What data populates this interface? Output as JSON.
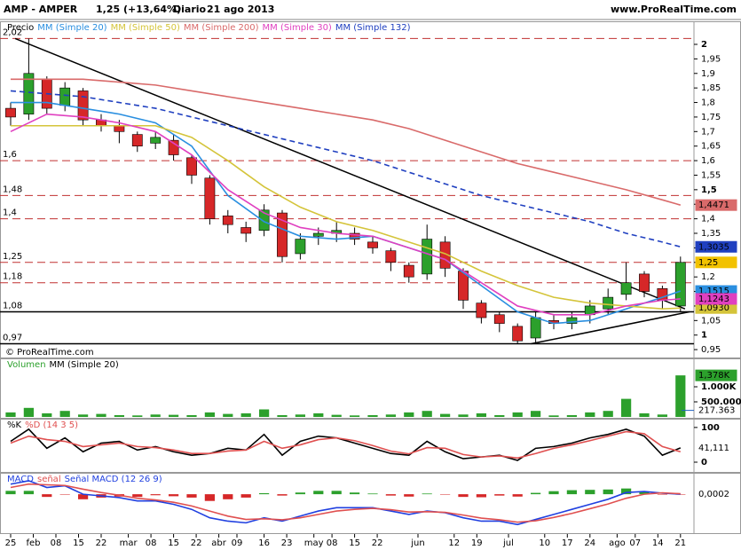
{
  "header": {
    "symbol": "AMP - AMPER",
    "quote": "1,25 (+13,64%)",
    "period": "Diario",
    "date": "21 ago 2013",
    "site": "www.ProRealTime.com"
  },
  "copyright": "© ProRealTime.com",
  "chart_data": [
    {
      "type": "candlestick",
      "title": "Precio",
      "xlim": [
        -2.35,
        150.98
      ],
      "ylim": [
        0.932,
        2.061
      ],
      "color_up": "#2ca02c",
      "color_down": "#d62728",
      "x": [
        0,
        4,
        8,
        12,
        16,
        20,
        24,
        28,
        32,
        36,
        40,
        44,
        48,
        52,
        56,
        60,
        64,
        68,
        72,
        76,
        80,
        84,
        88,
        92,
        96,
        100,
        104,
        108,
        112,
        116,
        120,
        124,
        128,
        132,
        136,
        140,
        144,
        148
      ],
      "open": [
        1.78,
        1.76,
        1.88,
        1.79,
        1.84,
        1.74,
        1.72,
        1.69,
        1.66,
        1.67,
        1.61,
        1.54,
        1.41,
        1.37,
        1.36,
        1.42,
        1.28,
        1.34,
        1.35,
        1.35,
        1.32,
        1.29,
        1.24,
        1.21,
        1.32,
        1.22,
        1.11,
        1.07,
        1.03,
        0.99,
        1.05,
        1.04,
        1.07,
        1.09,
        1.14,
        1.21,
        1.16,
        1.1
      ],
      "high": [
        1.8,
        2.02,
        1.89,
        1.87,
        1.85,
        1.76,
        1.74,
        1.7,
        1.7,
        1.69,
        1.62,
        1.55,
        1.43,
        1.39,
        1.45,
        1.43,
        1.35,
        1.37,
        1.39,
        1.37,
        1.34,
        1.3,
        1.25,
        1.38,
        1.34,
        1.23,
        1.12,
        1.08,
        1.04,
        1.08,
        1.07,
        1.08,
        1.12,
        1.16,
        1.25,
        1.22,
        1.17,
        1.27
      ],
      "low": [
        1.72,
        1.74,
        1.76,
        1.77,
        1.72,
        1.7,
        1.66,
        1.63,
        1.64,
        1.6,
        1.52,
        1.38,
        1.35,
        1.32,
        1.34,
        1.25,
        1.26,
        1.31,
        1.32,
        1.31,
        1.28,
        1.22,
        1.18,
        1.19,
        1.2,
        1.09,
        1.04,
        1.01,
        0.97,
        0.97,
        1.02,
        1.02,
        1.04,
        1.07,
        1.12,
        1.13,
        1.09,
        1.08
      ],
      "close": [
        1.75,
        1.9,
        1.78,
        1.85,
        1.74,
        1.72,
        1.7,
        1.65,
        1.68,
        1.62,
        1.55,
        1.4,
        1.38,
        1.35,
        1.43,
        1.27,
        1.33,
        1.35,
        1.36,
        1.33,
        1.3,
        1.25,
        1.2,
        1.33,
        1.23,
        1.12,
        1.06,
        1.04,
        0.98,
        1.06,
        1.04,
        1.06,
        1.1,
        1.13,
        1.18,
        1.15,
        1.12,
        1.25
      ],
      "close_label": "1,25",
      "close_tag_color": "#f2c200",
      "series": [
        {
          "name": "MM (Simple 20)",
          "color": "#2a8fe0",
          "x": [
            0,
            8,
            16,
            24,
            32,
            40,
            48,
            56,
            64,
            72,
            80,
            88,
            96,
            104,
            112,
            120,
            128,
            136,
            144,
            148
          ],
          "values": [
            1.8,
            1.8,
            1.78,
            1.76,
            1.73,
            1.65,
            1.48,
            1.39,
            1.34,
            1.33,
            1.34,
            1.3,
            1.26,
            1.17,
            1.08,
            1.04,
            1.05,
            1.09,
            1.13,
            1.1515
          ],
          "last_label": "1,1515"
        },
        {
          "name": "MM (Simple 50)",
          "color": "#d4c43a",
          "x": [
            0,
            8,
            16,
            24,
            32,
            40,
            48,
            56,
            64,
            72,
            80,
            88,
            96,
            104,
            112,
            120,
            128,
            136,
            144,
            148
          ],
          "values": [
            1.72,
            1.72,
            1.72,
            1.72,
            1.72,
            1.68,
            1.6,
            1.51,
            1.44,
            1.39,
            1.36,
            1.32,
            1.28,
            1.22,
            1.17,
            1.13,
            1.11,
            1.1,
            1.09,
            1.093
          ],
          "last_label": "1,0930"
        },
        {
          "name": "MM (Simple 200)",
          "color": "#d96a6a",
          "x": [
            0,
            8,
            16,
            24,
            32,
            40,
            48,
            56,
            64,
            72,
            80,
            88,
            96,
            104,
            112,
            120,
            128,
            136,
            144,
            148
          ],
          "values": [
            1.88,
            1.88,
            1.88,
            1.87,
            1.86,
            1.84,
            1.82,
            1.8,
            1.78,
            1.76,
            1.74,
            1.71,
            1.67,
            1.63,
            1.59,
            1.56,
            1.53,
            1.5,
            1.465,
            1.4471
          ],
          "last_label": "1,4471"
        },
        {
          "name": "MM (Simple 30)",
          "color": "#e040c0",
          "x": [
            0,
            8,
            16,
            24,
            32,
            40,
            48,
            56,
            64,
            72,
            80,
            88,
            96,
            104,
            112,
            120,
            128,
            136,
            144,
            148
          ],
          "values": [
            1.7,
            1.76,
            1.75,
            1.73,
            1.7,
            1.62,
            1.5,
            1.42,
            1.37,
            1.35,
            1.34,
            1.3,
            1.26,
            1.18,
            1.1,
            1.07,
            1.07,
            1.1,
            1.12,
            1.1243
          ],
          "last_label": "1,1243"
        },
        {
          "name": "MM (Simple 132)",
          "color": "#2040c0",
          "dashed": true,
          "x": [
            0,
            8,
            16,
            24,
            32,
            40,
            48,
            56,
            64,
            72,
            80,
            88,
            96,
            104,
            112,
            120,
            128,
            136,
            144,
            148
          ],
          "values": [
            1.84,
            1.83,
            1.82,
            1.8,
            1.78,
            1.75,
            1.72,
            1.69,
            1.66,
            1.63,
            1.6,
            1.56,
            1.52,
            1.48,
            1.45,
            1.42,
            1.39,
            1.35,
            1.32,
            1.3035
          ],
          "last_label": "1,3035"
        }
      ],
      "levels": [
        {
          "value": 2.02,
          "label": "2,02",
          "style": "dashed"
        },
        {
          "value": 1.6,
          "label": "1,6",
          "style": "dashed"
        },
        {
          "value": 1.48,
          "label": "1,48",
          "style": "dashed"
        },
        {
          "value": 1.4,
          "label": "1,4",
          "style": "dashed"
        },
        {
          "value": 1.25,
          "label": "1,25",
          "style": "dashed"
        },
        {
          "value": 1.18,
          "label": "1,18",
          "style": "dashed"
        },
        {
          "value": 1.08,
          "label": "1,08",
          "style": "solid"
        },
        {
          "value": 0.97,
          "label": "0,97",
          "style": "solid"
        }
      ],
      "trendlines": [
        {
          "x": [
            1,
            149
          ],
          "y": [
            2.02,
            1.09
          ]
        },
        {
          "x": [
            115,
            150
          ],
          "y": [
            0.97,
            1.08
          ]
        }
      ],
      "yticks": [
        2,
        {
          "value": 1.95,
          "label": "1,95"
        },
        {
          "value": 1.9,
          "label": "1,9"
        },
        {
          "value": 1.85,
          "label": "1,85"
        },
        {
          "value": 1.8,
          "label": "1,8"
        },
        {
          "value": 1.75,
          "label": "1,75"
        },
        {
          "value": 1.7,
          "label": "1,7"
        },
        {
          "value": 1.65,
          "label": "1,65"
        },
        {
          "value": 1.6,
          "label": "1,6"
        },
        {
          "value": 1.55,
          "label": "1,55"
        },
        {
          "value": 1.5,
          "label": "1,5"
        },
        {
          "value": 1.45,
          "label": "1,45"
        },
        {
          "value": 1.4,
          "label": "1,4"
        },
        {
          "value": 1.35,
          "label": "1,35"
        },
        {
          "value": 1.3,
          "label": "1,3"
        },
        {
          "value": 1.25,
          "label": "1,25"
        },
        {
          "value": 1.2,
          "label": "1,2"
        },
        {
          "value": 1.15,
          "label": "1,15"
        },
        {
          "value": 1.1,
          "label": "1,1"
        },
        {
          "value": 1.05,
          "label": "1,05"
        },
        1,
        {
          "value": 0.95,
          "label": "0,95"
        }
      ]
    },
    {
      "type": "bar",
      "title": "Volumen",
      "xlim": [
        -2.35,
        150.98
      ],
      "ylim": [
        0,
        1765000
      ],
      "color": "#2ca02c",
      "x": [
        0,
        4,
        8,
        12,
        16,
        20,
        24,
        28,
        32,
        36,
        40,
        44,
        48,
        52,
        56,
        60,
        64,
        68,
        72,
        76,
        80,
        84,
        88,
        92,
        96,
        100,
        104,
        108,
        112,
        116,
        120,
        124,
        128,
        132,
        136,
        140,
        144,
        148
      ],
      "values": [
        150000,
        300000,
        120000,
        200000,
        80000,
        100000,
        60000,
        50000,
        80000,
        70000,
        60000,
        150000,
        100000,
        120000,
        250000,
        60000,
        80000,
        120000,
        70000,
        50000,
        60000,
        80000,
        150000,
        200000,
        100000,
        80000,
        120000,
        60000,
        150000,
        200000,
        50000,
        60000,
        150000,
        200000,
        600000,
        120000,
        80000,
        1378000
      ],
      "last_label": "1,378K",
      "ma": {
        "name": "MM (Simple 20)",
        "color": "#2060c0",
        "last": 217363,
        "last_label": "217.363"
      },
      "yticks": [
        {
          "value": 1000000,
          "label": "1.000K"
        },
        {
          "value": 500000,
          "label": "500.000"
        }
      ]
    },
    {
      "type": "line",
      "xlim": [
        -2.35,
        150.98
      ],
      "ylim": [
        -23,
        115
      ],
      "x": [
        0,
        4,
        8,
        12,
        16,
        20,
        24,
        28,
        32,
        36,
        40,
        44,
        48,
        52,
        56,
        60,
        64,
        68,
        72,
        76,
        80,
        84,
        88,
        92,
        96,
        100,
        104,
        108,
        112,
        116,
        120,
        124,
        128,
        132,
        136,
        140,
        144,
        148
      ],
      "series": [
        {
          "name": "%K",
          "color": "#000000",
          "values": [
            60,
            95,
            40,
            70,
            30,
            55,
            60,
            35,
            45,
            30,
            20,
            25,
            40,
            35,
            80,
            20,
            60,
            75,
            70,
            55,
            40,
            25,
            20,
            60,
            30,
            10,
            15,
            20,
            5,
            40,
            45,
            55,
            70,
            80,
            95,
            75,
            20,
            41.111
          ],
          "last_label": "41,111"
        },
        {
          "name": "%D (14 3 5)",
          "color": "#e05050",
          "values": [
            55,
            75,
            65,
            60,
            45,
            50,
            55,
            45,
            42,
            35,
            25,
            25,
            32,
            35,
            60,
            40,
            50,
            65,
            70,
            62,
            48,
            32,
            24,
            42,
            40,
            22,
            15,
            18,
            12,
            25,
            40,
            50,
            62,
            75,
            88,
            82,
            45,
            30
          ]
        }
      ],
      "yticks": [
        100,
        0
      ]
    },
    {
      "type": "line",
      "xlim": [
        -2.35,
        150.98
      ],
      "ylim": [
        -0.113,
        0.053
      ],
      "x": [
        0,
        4,
        8,
        12,
        16,
        20,
        24,
        28,
        32,
        36,
        40,
        44,
        48,
        52,
        56,
        60,
        64,
        68,
        72,
        76,
        80,
        84,
        88,
        92,
        96,
        100,
        104,
        108,
        112,
        116,
        120,
        124,
        128,
        132,
        136,
        140,
        144,
        148
      ],
      "series": [
        {
          "name": "MACD",
          "color": "#2040e0",
          "values": [
            0.03,
            0.04,
            0.02,
            0.025,
            0.0,
            -0.005,
            -0.01,
            -0.02,
            -0.02,
            -0.03,
            -0.045,
            -0.07,
            -0.08,
            -0.085,
            -0.07,
            -0.08,
            -0.065,
            -0.05,
            -0.04,
            -0.04,
            -0.04,
            -0.05,
            -0.06,
            -0.05,
            -0.055,
            -0.07,
            -0.08,
            -0.08,
            -0.09,
            -0.075,
            -0.06,
            -0.045,
            -0.03,
            -0.015,
            0.005,
            0.008,
            0.003,
            0.0002
          ],
          "last_label": "0,0002"
        },
        {
          "name": "señal",
          "color": "#e05050",
          "values": [
            0.02,
            0.03,
            0.028,
            0.026,
            0.015,
            0.005,
            -0.003,
            -0.012,
            -0.017,
            -0.024,
            -0.035,
            -0.05,
            -0.065,
            -0.075,
            -0.073,
            -0.076,
            -0.07,
            -0.06,
            -0.05,
            -0.045,
            -0.042,
            -0.046,
            -0.053,
            -0.052,
            -0.054,
            -0.062,
            -0.071,
            -0.076,
            -0.083,
            -0.079,
            -0.069,
            -0.057,
            -0.043,
            -0.029,
            -0.012,
            0.0,
            0.004,
            0.0015
          ]
        }
      ],
      "histogram": {
        "name": "Señal MACD (12 26 9)",
        "color_up": "#2ca02c",
        "color_down": "#d62728",
        "values": [
          0.01,
          0.01,
          -0.008,
          -0.001,
          -0.015,
          -0.01,
          -0.007,
          -0.008,
          -0.003,
          -0.006,
          -0.01,
          -0.02,
          -0.015,
          -0.01,
          0.003,
          -0.004,
          0.005,
          0.01,
          0.01,
          0.005,
          0.002,
          -0.004,
          -0.007,
          0.002,
          -0.001,
          -0.008,
          -0.009,
          -0.004,
          -0.007,
          0.004,
          0.009,
          0.012,
          0.013,
          0.014,
          0.017,
          0.008,
          -0.001,
          -0.0013
        ]
      },
      "xticks": [
        {
          "value": 0,
          "label": "25"
        },
        {
          "value": 5,
          "label": "feb"
        },
        {
          "value": 10,
          "label": "08"
        },
        {
          "value": 15,
          "label": "15"
        },
        {
          "value": 20,
          "label": "22"
        },
        {
          "value": 26,
          "label": "mar"
        },
        {
          "value": 31,
          "label": "08"
        },
        {
          "value": 36,
          "label": "15"
        },
        {
          "value": 41,
          "label": "22"
        },
        {
          "value": 46,
          "label": "abr"
        },
        {
          "value": 50,
          "label": "09"
        },
        {
          "value": 56,
          "label": "16"
        },
        {
          "value": 61,
          "label": "23"
        },
        {
          "value": 67,
          "label": "may"
        },
        {
          "value": 71,
          "label": "08"
        },
        {
          "value": 76,
          "label": "15"
        },
        {
          "value": 81,
          "label": "22"
        },
        {
          "value": 90,
          "label": "jun"
        },
        {
          "value": 98,
          "label": "12"
        },
        {
          "value": 103,
          "label": "19"
        },
        {
          "value": 110,
          "label": "jul"
        },
        {
          "value": 118,
          "label": "10"
        },
        {
          "value": 123,
          "label": "17"
        },
        {
          "value": 128,
          "label": "24"
        },
        {
          "value": 134,
          "label": "ago"
        },
        {
          "value": 138,
          "label": "07"
        },
        {
          "value": 143,
          "label": "14"
        },
        {
          "value": 148,
          "label": "21"
        }
      ]
    }
  ]
}
